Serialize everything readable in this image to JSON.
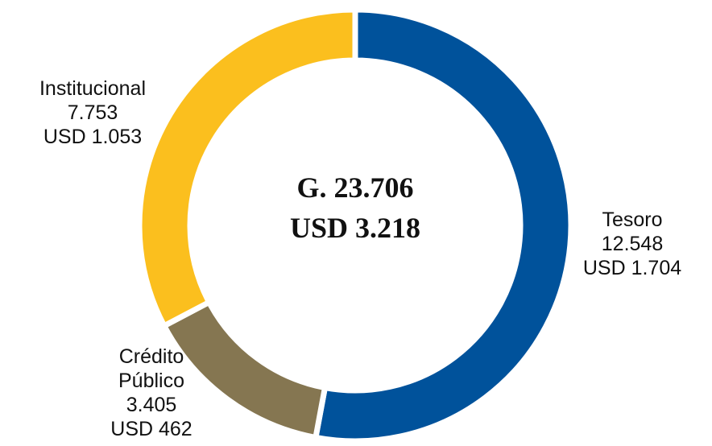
{
  "chart_data": {
    "type": "donut",
    "categories": [
      "Tesoro",
      "Crédito Público",
      "Institucional"
    ],
    "values": [
      12548,
      3405,
      7753
    ],
    "value_labels": [
      "12.548",
      "3.405",
      "7.753"
    ],
    "usd_labels": [
      "USD 1.704",
      "USD 462",
      "USD 1.053"
    ],
    "colors": [
      "#00529b",
      "#857651",
      "#fbbf1e"
    ],
    "center": [
      "G. 23.706",
      "USD 3.218"
    ]
  }
}
